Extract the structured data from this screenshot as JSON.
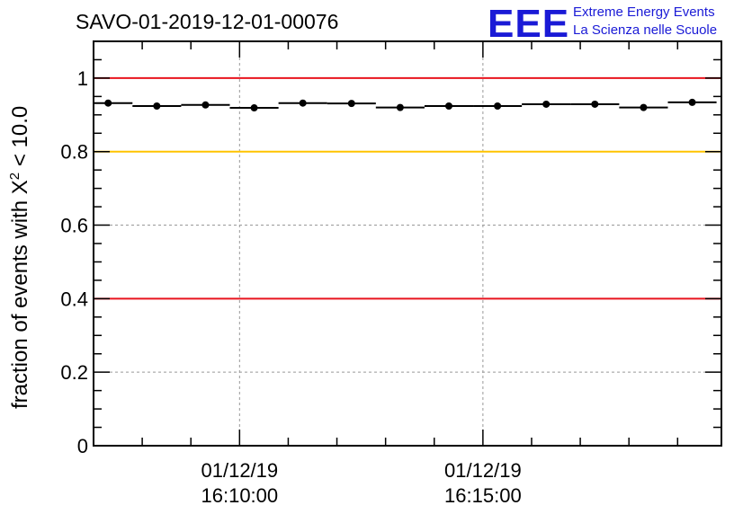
{
  "header": {
    "title": "SAVO-01-2019-12-01-00076",
    "logo_mark": "EEE",
    "logo_line1": "Extreme Energy Events",
    "logo_line2": "La Scienza nelle Scuole"
  },
  "colors": {
    "red_line": "#e8141e",
    "yellow_line": "#ffc400",
    "points": "#000000",
    "grid": "#999999",
    "logo": "#1a1ad6"
  },
  "chart_data": {
    "type": "scatter",
    "title": "SAVO-01-2019-12-01-00076",
    "xlabel": "",
    "ylabel_prefix": "fraction of events with",
    "ylabel_symbol": "X",
    "ylabel_superscript": "2",
    "ylabel_suffix": "< 10.0",
    "ylim": [
      0,
      1.1
    ],
    "y_ticks": [
      {
        "value": 0,
        "label": "0"
      },
      {
        "value": 0.2,
        "label": "0.2"
      },
      {
        "value": 0.4,
        "label": "0.4"
      },
      {
        "value": 0.6,
        "label": "0.6"
      },
      {
        "value": 0.8,
        "label": "0.8"
      },
      {
        "value": 1.0,
        "label": "1"
      }
    ],
    "xlim_minutes": [
      -3.0,
      9.9
    ],
    "x_ticks": [
      {
        "value": 0,
        "label_date": "01/12/19",
        "label_time": "16:10:00"
      },
      {
        "value": 5,
        "label_date": "01/12/19",
        "label_time": "16:15:00"
      }
    ],
    "bin_width_minutes": 1.0,
    "reference_lines": [
      {
        "value": 1.0,
        "color": "red"
      },
      {
        "value": 0.8,
        "color": "yellow"
      },
      {
        "value": 0.4,
        "color": "red"
      }
    ],
    "points": [
      {
        "x": -2.7,
        "y": 0.932
      },
      {
        "x": -1.7,
        "y": 0.924
      },
      {
        "x": -0.7,
        "y": 0.927
      },
      {
        "x": 0.3,
        "y": 0.919
      },
      {
        "x": 1.3,
        "y": 0.932
      },
      {
        "x": 2.3,
        "y": 0.931
      },
      {
        "x": 3.3,
        "y": 0.92
      },
      {
        "x": 4.3,
        "y": 0.924
      },
      {
        "x": 5.3,
        "y": 0.924
      },
      {
        "x": 6.3,
        "y": 0.929
      },
      {
        "x": 7.3,
        "y": 0.929
      },
      {
        "x": 8.3,
        "y": 0.92
      },
      {
        "x": 9.3,
        "y": 0.934
      }
    ]
  }
}
